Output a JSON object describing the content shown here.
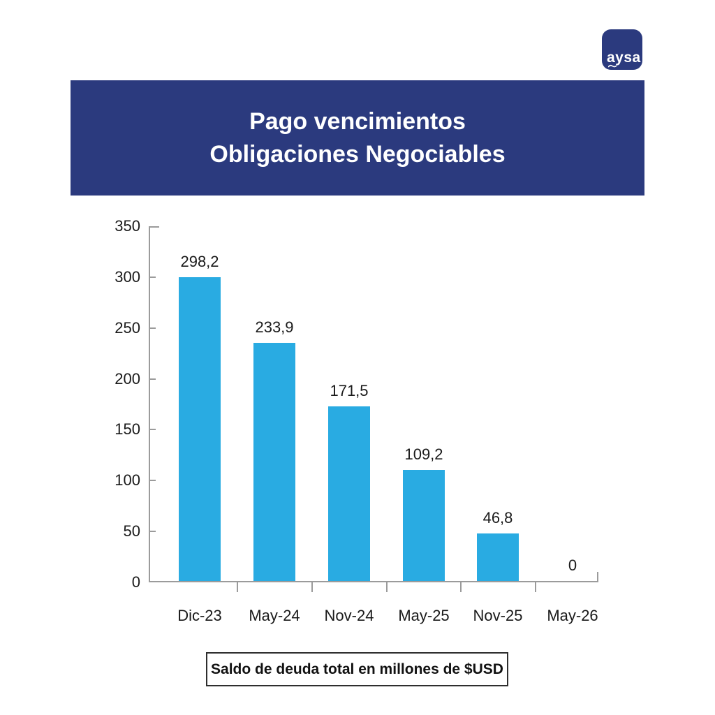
{
  "logo": {
    "text": "aysa",
    "bg_color": "#2B3A7E"
  },
  "header": {
    "title_line1": "Pago vencimientos",
    "title_line2": "Obligaciones Negociables",
    "bg_color": "#2B3A7E",
    "text_color": "#FFFFFF"
  },
  "chart_data": {
    "type": "bar",
    "title": "Pago vencimientos Obligaciones Negociables",
    "categories": [
      "Dic-23",
      "May-24",
      "Nov-24",
      "May-25",
      "Nov-25",
      "May-26"
    ],
    "values": [
      298.2,
      233.9,
      171.5,
      109.2,
      46.8,
      0
    ],
    "value_labels": [
      "298,2",
      "233,9",
      "171,5",
      "109,2",
      "46,8",
      "0"
    ],
    "xlabel": "",
    "ylabel": "",
    "ylim": [
      0,
      350
    ],
    "yticks": [
      0,
      50,
      100,
      150,
      200,
      250,
      300,
      350
    ],
    "grid": false,
    "legend": false,
    "bar_color": "#29ABE2",
    "axis_color": "#9B9B9B"
  },
  "footer": {
    "note": "Saldo de deuda total en millones de $USD"
  }
}
